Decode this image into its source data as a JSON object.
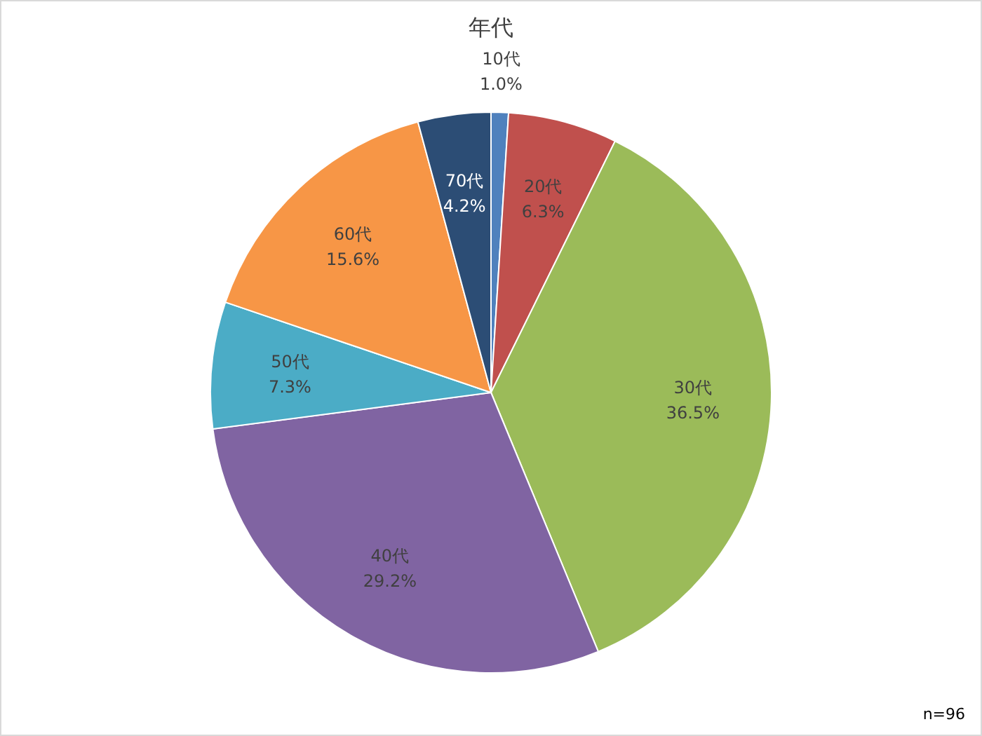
{
  "chart_data": {
    "type": "pie",
    "title": "年代",
    "categories": [
      "10代",
      "20代",
      "30代",
      "40代",
      "50代",
      "60代",
      "70代"
    ],
    "values": [
      1.0,
      6.3,
      36.5,
      29.2,
      7.3,
      15.6,
      4.2
    ],
    "value_labels": [
      "1.0%",
      "6.3%",
      "36.5%",
      "29.2%",
      "7.3%",
      "15.6%",
      "4.2%"
    ],
    "colors": [
      "#4f81bd",
      "#c0504d",
      "#9bbb59",
      "#8064a2",
      "#4bacc6",
      "#f79646",
      "#2c4d75"
    ],
    "annotations": [
      "n=96"
    ]
  }
}
